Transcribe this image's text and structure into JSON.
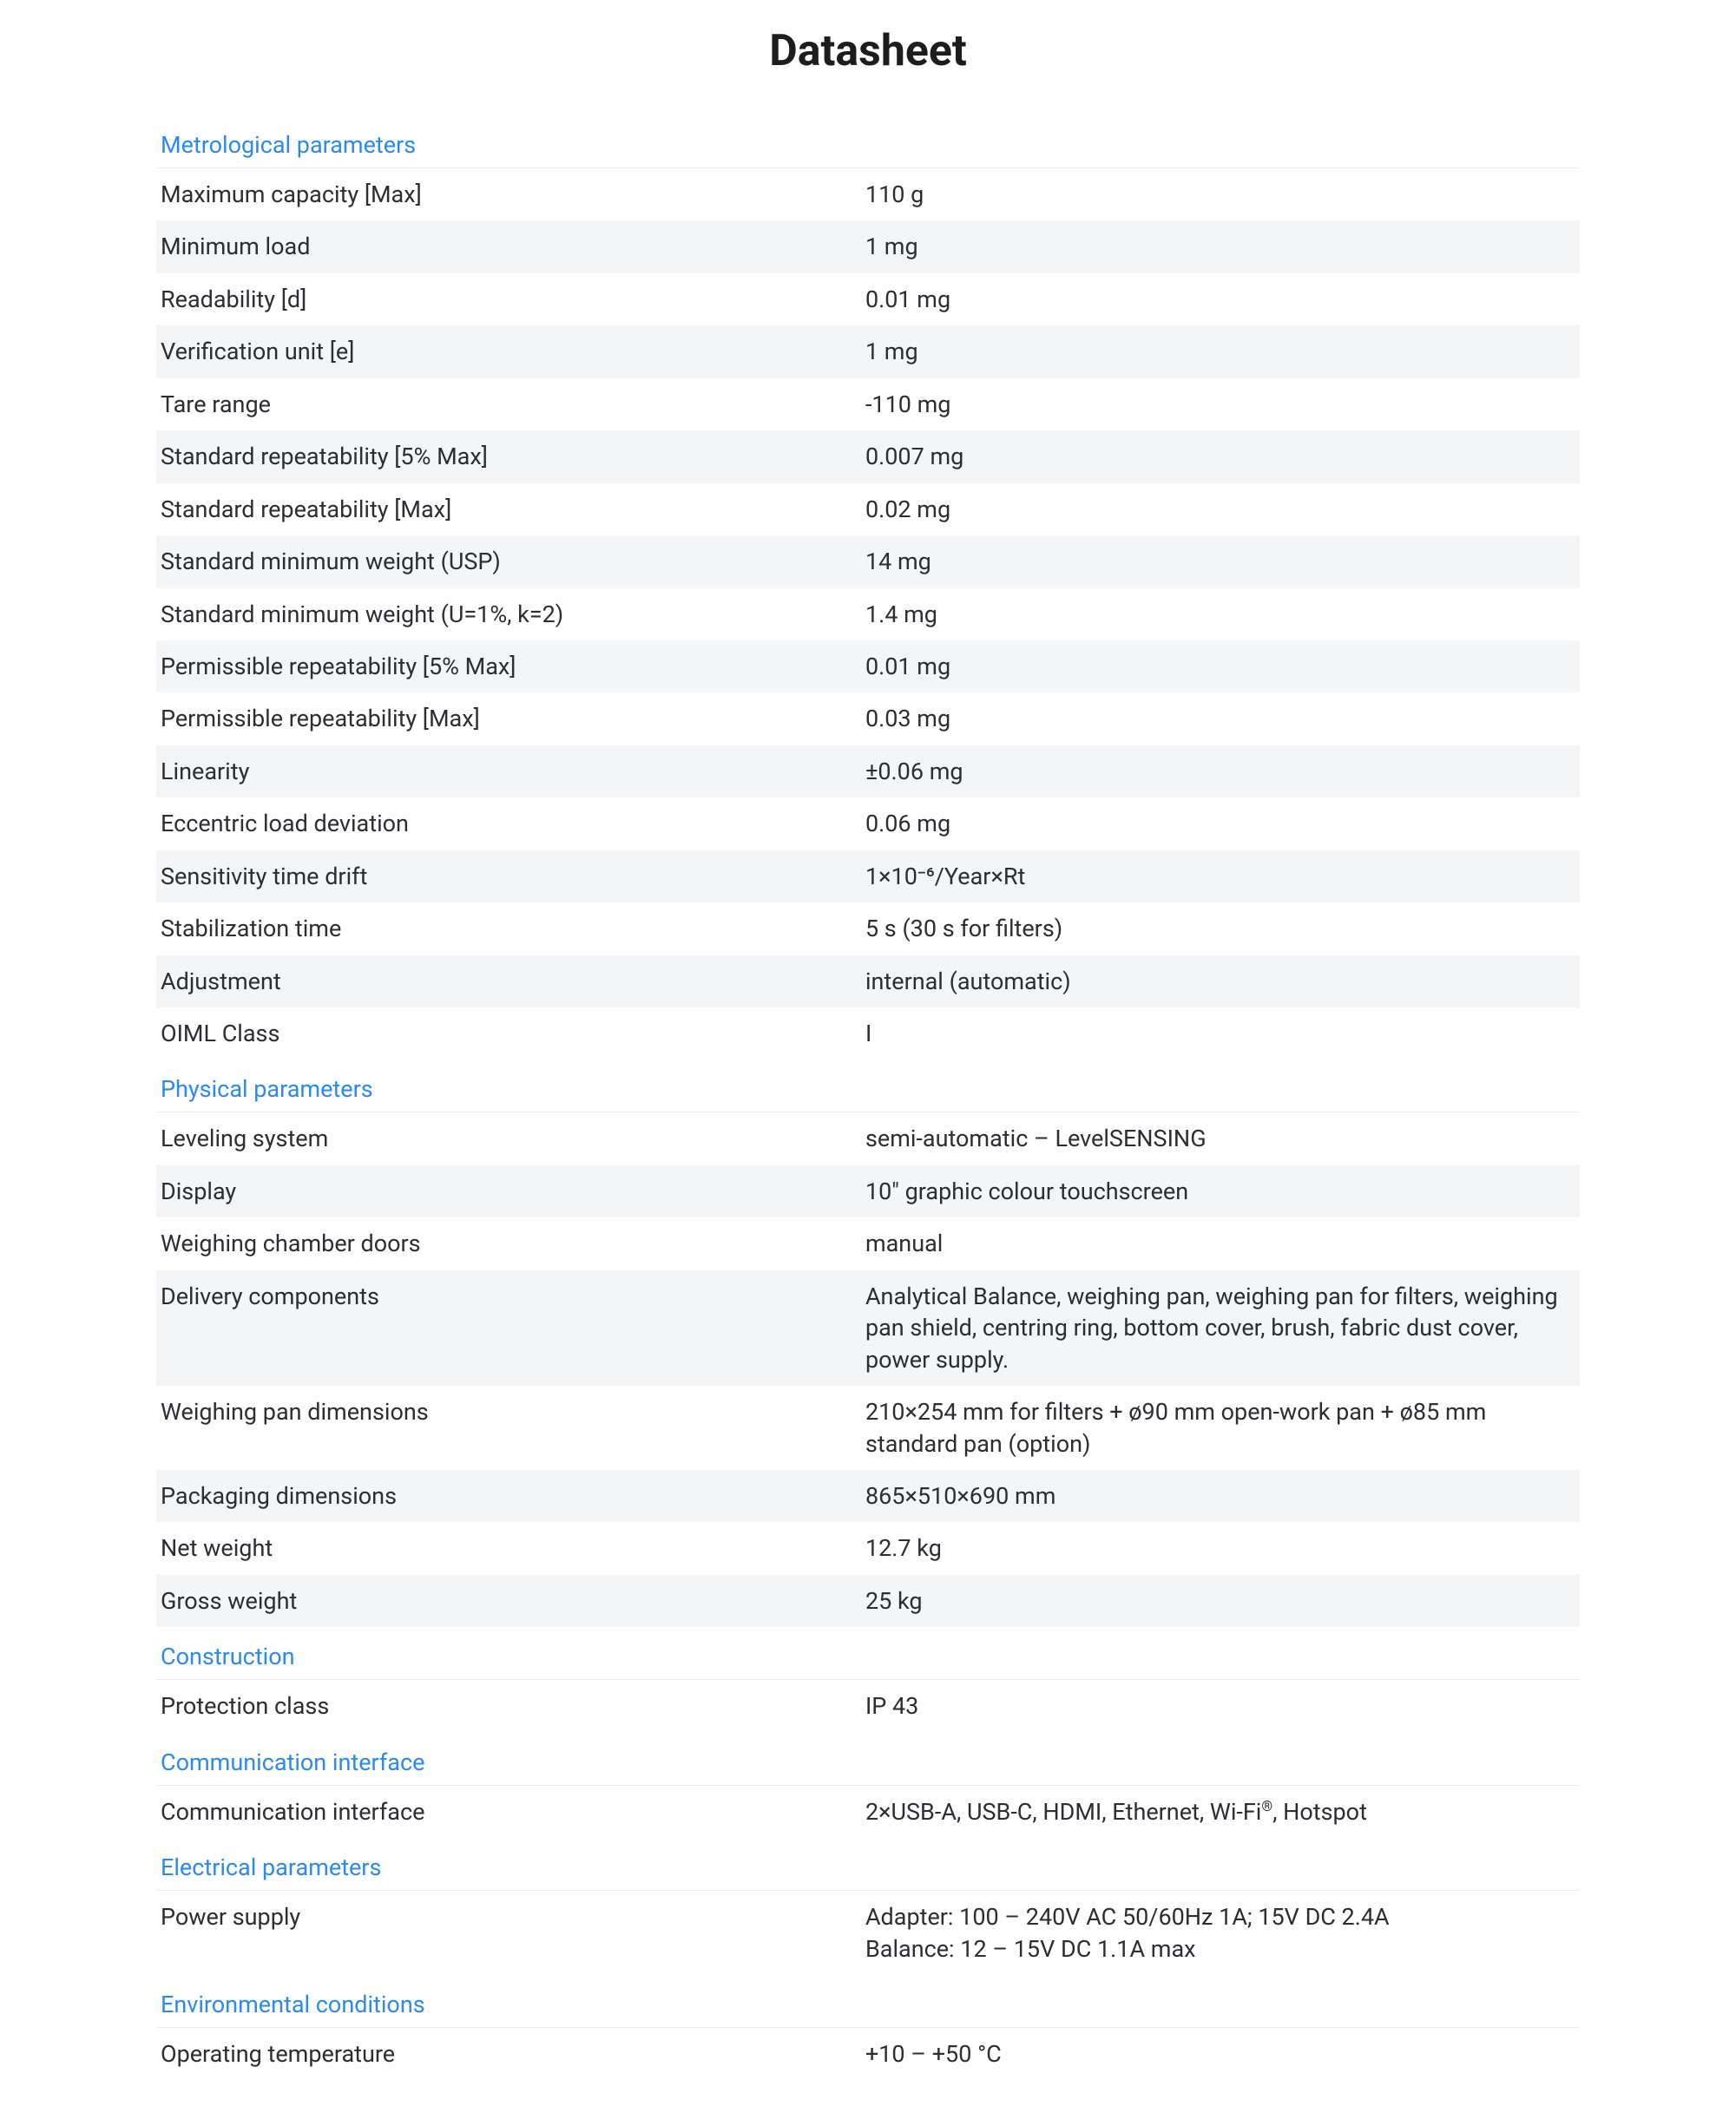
{
  "title": "Datasheet",
  "sections": [
    {
      "name": "Metrological parameters",
      "rows": [
        {
          "l": "Maximum capacity [Max]",
          "r": "110 g"
        },
        {
          "l": "Minimum load",
          "r": "1 mg"
        },
        {
          "l": "Readability [d]",
          "r": "0.01 mg"
        },
        {
          "l": "Verification unit [e]",
          "r": "1 mg"
        },
        {
          "l": "Tare range",
          "r": "-110 mg"
        },
        {
          "l": "Standard repeatability [5% Max]",
          "r": "0.007 mg"
        },
        {
          "l": "Standard repeatability [Max]",
          "r": "0.02 mg"
        },
        {
          "l": "Standard minimum weight (USP)",
          "r": "14 mg"
        },
        {
          "l": "Standard minimum weight (U=1%, k=2)",
          "r": "1.4 mg"
        },
        {
          "l": "Permissible repeatability [5% Max]",
          "r": "0.01 mg"
        },
        {
          "l": "Permissible repeatability [Max]",
          "r": "0.03 mg"
        },
        {
          "l": "Linearity",
          "r": "±0.06 mg"
        },
        {
          "l": "Eccentric load deviation",
          "r": "0.06 mg"
        },
        {
          "l": "Sensitivity time drift",
          "r": "1×10⁻⁶/Year×Rt"
        },
        {
          "l": "Stabilization time",
          "r": "5 s (30 s for filters)"
        },
        {
          "l": "Adjustment",
          "r": "internal (automatic)"
        },
        {
          "l": "OIML Class",
          "r": "I"
        }
      ]
    },
    {
      "name": "Physical parameters",
      "rows": [
        {
          "l": "Leveling system",
          "r": "semi-automatic – LevelSENSING"
        },
        {
          "l": "Display",
          "r": "10\" graphic colour touchscreen"
        },
        {
          "l": "Weighing chamber doors",
          "r": "manual"
        },
        {
          "l": "Delivery components",
          "r": "Analytical Balance, weighing pan, weighing pan for filters, weighing pan shield, centring ring, bottom cover, brush, fabric dust cover, power supply."
        },
        {
          "l": "Weighing pan dimensions",
          "r": "210×254 mm for filters + ø90 mm open-work pan + ø85 mm standard pan (option)"
        },
        {
          "l": "Packaging dimensions",
          "r": "865×510×690 mm"
        },
        {
          "l": "Net weight",
          "r": "12.7 kg"
        },
        {
          "l": "Gross weight",
          "r": "25 kg"
        }
      ]
    },
    {
      "name": "Construction",
      "rows": [
        {
          "l": "Protection class",
          "r": "IP 43"
        }
      ]
    },
    {
      "name": "Communication interface",
      "rows": [
        {
          "l": "Communication interface",
          "r_html": "2×USB-A, USB-C, HDMI, Ethernet, Wi-Fi<sup>®</sup>, Hotspot"
        }
      ]
    },
    {
      "name": "Electrical parameters",
      "rows": [
        {
          "l": "Power supply",
          "r_html": "Adapter: 100 – 240V AC 50/60Hz 1A; 15V DC 2.4A<br>Balance: 12 – 15V DC 1.1A max"
        }
      ]
    },
    {
      "name": "Environmental conditions",
      "rows": [
        {
          "l": "Operating temperature",
          "r": "+10 – +50 °C"
        }
      ]
    }
  ],
  "style": {
    "accent": "#2b8aef",
    "alt_row_bg": "#f3f5f7",
    "text_color": "#2c2e33",
    "divider": "#e9ecef"
  }
}
